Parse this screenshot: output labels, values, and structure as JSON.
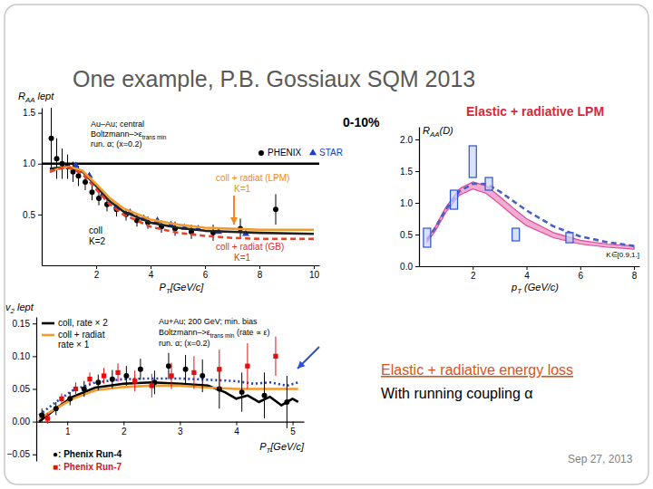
{
  "slide": {
    "title": "One example, P.B. Gossiaux SQM 2013",
    "caption": [
      "Elastic + radiative energy loss",
      "With running coupling α"
    ],
    "date": "Sep 27, 2013"
  },
  "chart_data": [
    {
      "type": "line",
      "ylabel": [
        "R",
        "AA",
        " lept"
      ],
      "xlabel": [
        "P",
        "T",
        "[GeV/c]"
      ],
      "xlim": [
        0,
        10.2
      ],
      "xticks": [
        2,
        4,
        6,
        8,
        10
      ],
      "ylim": [
        0,
        1.55
      ],
      "yticks": [
        0.5,
        {
          "value": 1,
          "label": "1.0"
        },
        1.5
      ],
      "reference_line": 1,
      "legend": "upper right",
      "annotations": [
        {
          "text": "Au–Au; central"
        },
        {
          "text": [
            "Boltzmann–>ε",
            "trans min"
          ]
        },
        {
          "text": "run. α; (x=0.2)"
        },
        {
          "text": "coll"
        },
        {
          "text": "K=2"
        },
        {
          "text": "coll + radiat (LPM)",
          "color": "#f08a1c"
        },
        {
          "text": "K=1",
          "color": "#f08a1c"
        },
        {
          "text": "coll + radiat (GB)",
          "color": "#e0301e"
        },
        {
          "text": "K=1",
          "color": "#e0301e"
        },
        {
          "text": "0-10%"
        }
      ],
      "series": [
        {
          "name": "PHENIX",
          "type": "scatter",
          "marker": "circle",
          "color": "#000000",
          "x": [
            0.35,
            0.55,
            0.75,
            0.95,
            1.15,
            1.35,
            1.6,
            1.85,
            2.1,
            2.4,
            2.75,
            3.1,
            3.5,
            3.9,
            4.4,
            4.9,
            5.5,
            6.3,
            7.3,
            8.6
          ],
          "values": [
            1.25,
            1.05,
            1.0,
            0.97,
            0.92,
            0.88,
            0.82,
            0.72,
            0.66,
            0.6,
            0.55,
            0.5,
            0.44,
            0.42,
            0.38,
            0.36,
            0.33,
            0.32,
            0.36,
            0.55
          ],
          "errors": [
            0.3,
            0.2,
            0.15,
            0.12,
            0.1,
            0.1,
            0.08,
            0.08,
            0.07,
            0.07,
            0.07,
            0.06,
            0.06,
            0.06,
            0.06,
            0.07,
            0.07,
            0.08,
            0.1,
            0.15
          ]
        },
        {
          "name": "STAR",
          "type": "scatter",
          "marker": "triangle",
          "color": "#1a3ccc",
          "x": [
            1.25,
            1.75,
            2.25,
            2.75,
            3.25,
            3.75,
            4.25,
            4.75,
            5.25,
            5.75,
            6.5,
            7.5
          ],
          "values": [
            0.98,
            0.88,
            0.7,
            0.58,
            0.52,
            0.46,
            0.44,
            0.4,
            0.37,
            0.36,
            0.33,
            0.31
          ]
        },
        {
          "type": "line",
          "color": "#222222",
          "line_style": "solid",
          "x": [
            0.3,
            0.6,
            1,
            1.5,
            2,
            2.5,
            3,
            4,
            5,
            6,
            7,
            8,
            10
          ],
          "values": [
            0.95,
            0.96,
            0.97,
            0.92,
            0.78,
            0.63,
            0.53,
            0.42,
            0.37,
            0.34,
            0.33,
            0.32,
            0.31
          ]
        },
        {
          "type": "line",
          "color": "#f39a2c",
          "line_style": "solid",
          "x": [
            0.3,
            0.6,
            1,
            1.5,
            2,
            2.5,
            3,
            4,
            5,
            6,
            7,
            8,
            10
          ],
          "values": [
            0.92,
            0.95,
            0.97,
            0.93,
            0.8,
            0.66,
            0.56,
            0.45,
            0.4,
            0.37,
            0.36,
            0.35,
            0.35
          ]
        },
        {
          "type": "line",
          "color": "#e8402a",
          "line_style": "dashed",
          "x": [
            0.3,
            0.6,
            1,
            1.5,
            2,
            2.5,
            3,
            4,
            5,
            6,
            7,
            8,
            10
          ],
          "values": [
            0.92,
            0.95,
            0.96,
            0.9,
            0.75,
            0.6,
            0.5,
            0.38,
            0.32,
            0.29,
            0.27,
            0.26,
            0.26
          ]
        }
      ]
    },
    {
      "type": "line",
      "title": "Elastic + radiative LPM",
      "ylabel": [
        "R",
        "AA",
        "(D)"
      ],
      "xlabel": [
        "p",
        "T",
        " (GeV/c)"
      ],
      "xlim": [
        0,
        8.2
      ],
      "xticks": [
        2,
        4,
        6,
        8
      ],
      "ylim": [
        0,
        2.2
      ],
      "yticks": [
        {
          "value": 0,
          "label": "0.0"
        },
        0.5,
        {
          "value": 1,
          "label": "1.0"
        },
        1.5,
        {
          "value": 2,
          "label": "2.0"
        }
      ],
      "annotations": [
        {
          "text": "K∈[0.9,1.]"
        }
      ],
      "series": [
        {
          "type": "area",
          "color": "#e0479a",
          "x": [
            0.3,
            0.6,
            1,
            1.5,
            2,
            2.5,
            3,
            3.5,
            4,
            5,
            6,
            7,
            8
          ],
          "lower": [
            0.38,
            0.55,
            0.85,
            1.12,
            1.22,
            1.15,
            0.98,
            0.8,
            0.64,
            0.45,
            0.35,
            0.3,
            0.27
          ],
          "upper": [
            0.44,
            0.62,
            0.93,
            1.22,
            1.33,
            1.27,
            1.1,
            0.92,
            0.75,
            0.53,
            0.41,
            0.35,
            0.32
          ]
        },
        {
          "type": "line",
          "color": "#4a5fc1",
          "line_style": "dashed",
          "x": [
            0.3,
            0.6,
            1,
            1.5,
            2,
            2.5,
            3,
            3.5,
            4,
            5,
            6,
            7,
            8
          ],
          "values": [
            0.42,
            0.6,
            0.9,
            1.18,
            1.3,
            1.3,
            1.18,
            1.03,
            0.88,
            0.63,
            0.47,
            0.38,
            0.32
          ]
        },
        {
          "type": "scatter",
          "marker": "box",
          "color": "#2b50d6",
          "x": [
            0.3,
            1.3,
            2.0,
            2.6,
            3.6,
            5.6
          ],
          "values": [
            0.45,
            1.05,
            1.65,
            1.3,
            0.5,
            0.45
          ],
          "errors": [
            0.15,
            0.15,
            0.25,
            0.1,
            0.1,
            0.08
          ]
        }
      ]
    },
    {
      "type": "line",
      "ylabel": [
        "v",
        "2",
        " lept"
      ],
      "xlabel": [
        "P",
        "T",
        "[GeV/c]"
      ],
      "xlim": [
        0.45,
        5.2
      ],
      "xticks": [
        1,
        2,
        3,
        4,
        5
      ],
      "ylim": [
        -0.06,
        0.16
      ],
      "yticks": [
        {
          "value": -0.05,
          "label": "−0.05"
        },
        {
          "value": 0,
          "label": "0.00"
        },
        0.05,
        {
          "value": 0.1,
          "label": "0.10"
        },
        0.15
      ],
      "legend": "upper left",
      "annotations": [
        {
          "text": "Au+Au; 200 GeV; min. bias"
        },
        {
          "text": [
            "Boltzmann–>ε",
            "trans min",
            " (rate ∝ ε)"
          ]
        },
        {
          "text": "run. α; (x=0.2)"
        }
      ],
      "series": [
        {
          "name": "coll, rate × 2",
          "type": "line",
          "color": "#000000",
          "line_style": "solid",
          "x": [
            0.5,
            0.8,
            1.1,
            1.5,
            2,
            2.5,
            3,
            3.5,
            3.8,
            4.0,
            4.2,
            4.4,
            4.6,
            4.8,
            5.0,
            5.1
          ],
          "values": [
            0.0,
            0.02,
            0.038,
            0.052,
            0.058,
            0.06,
            0.058,
            0.055,
            0.045,
            0.035,
            0.04,
            0.03,
            0.038,
            0.025,
            0.035,
            0.03
          ]
        },
        {
          "name": [
            "coll + radiat",
            "rate × 1"
          ],
          "type": "line",
          "color": "#f39a2c",
          "line_style": "solid",
          "x": [
            0.5,
            0.8,
            1.1,
            1.5,
            2,
            2.5,
            3,
            3.5,
            4,
            4.5,
            5.1
          ],
          "values": [
            0.005,
            0.02,
            0.035,
            0.048,
            0.053,
            0.055,
            0.055,
            0.052,
            0.05,
            0.05,
            0.05
          ]
        },
        {
          "type": "line",
          "color": "#1f3fb8",
          "line_style": "dotted",
          "x": [
            0.5,
            0.8,
            1.1,
            1.5,
            2,
            2.5,
            3,
            3.5,
            4,
            4.3,
            4.6,
            4.9,
            5.1
          ],
          "values": [
            0.01,
            0.03,
            0.048,
            0.06,
            0.065,
            0.066,
            0.066,
            0.064,
            0.062,
            0.058,
            0.06,
            0.055,
            0.06
          ]
        },
        {
          "name": "●: Phenix Run-4",
          "type": "scatter",
          "marker": "circle",
          "color": "#000000",
          "x": [
            0.55,
            0.8,
            1.05,
            1.3,
            1.55,
            1.8,
            2.05,
            2.3,
            2.55,
            2.8,
            3.1,
            3.4,
            3.7,
            4.1,
            4.5,
            4.9
          ],
          "values": [
            0.01,
            0.02,
            0.035,
            0.05,
            0.06,
            0.065,
            0.07,
            0.08,
            0.06,
            0.085,
            0.08,
            0.07,
            0.05,
            0.045,
            0.04,
            0.03
          ],
          "errors": [
            0.01,
            0.01,
            0.01,
            0.012,
            0.012,
            0.014,
            0.015,
            0.016,
            0.018,
            0.02,
            0.022,
            0.025,
            0.03,
            0.03,
            0.035,
            0.04
          ]
        },
        {
          "name": "■: Phenix Run-7",
          "type": "scatter",
          "marker": "square",
          "color": "#e01010",
          "x": [
            0.65,
            0.9,
            1.15,
            1.4,
            1.65,
            1.9,
            2.2,
            2.5,
            2.85,
            3.25,
            3.7,
            4.2,
            4.7
          ],
          "values": [
            0.005,
            0.035,
            0.05,
            0.065,
            0.07,
            0.075,
            0.062,
            0.055,
            0.07,
            0.075,
            0.08,
            0.085,
            0.1
          ],
          "errors": [
            0.008,
            0.008,
            0.01,
            0.01,
            0.012,
            0.014,
            0.016,
            0.018,
            0.02,
            0.025,
            0.03,
            0.035,
            0.03
          ]
        }
      ]
    }
  ]
}
